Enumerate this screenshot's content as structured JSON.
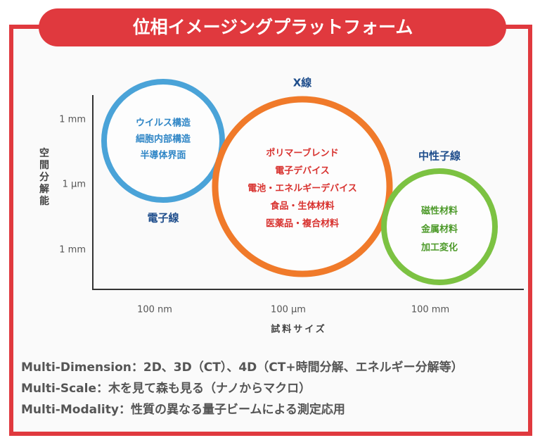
{
  "title": "位相イメージングプラットフォーム",
  "y_axis": {
    "label": "空間分解能",
    "ticks": [
      "1 mm",
      "1 μm",
      "1 mm"
    ]
  },
  "x_axis": {
    "label": "試料サイズ",
    "ticks": [
      "100 nm",
      "100 μm",
      "100 mm"
    ]
  },
  "regions": [
    {
      "label": "電子線",
      "items": [
        "ウイルス構造",
        "細胞内部構造",
        "半導体界面"
      ]
    },
    {
      "label": "X線",
      "items": [
        "ポリマーブレンド",
        "電子デバイス",
        "電池・エネルギーデバイス",
        "食品・生体材料",
        "医薬品・複合材料"
      ]
    },
    {
      "label": "中性子線",
      "items": [
        "磁性材料",
        "金属材料",
        "加工変化"
      ]
    }
  ],
  "notes": [
    "Multi-Dimension：2D、3D（CT）、4D（CT+時間分解、エネルギー分解等）",
    "Multi-Scale：木を見て森も見る（ナノからマクロ）",
    "Multi-Modality：性質の異なる量子ビームによる測定応用"
  ]
}
